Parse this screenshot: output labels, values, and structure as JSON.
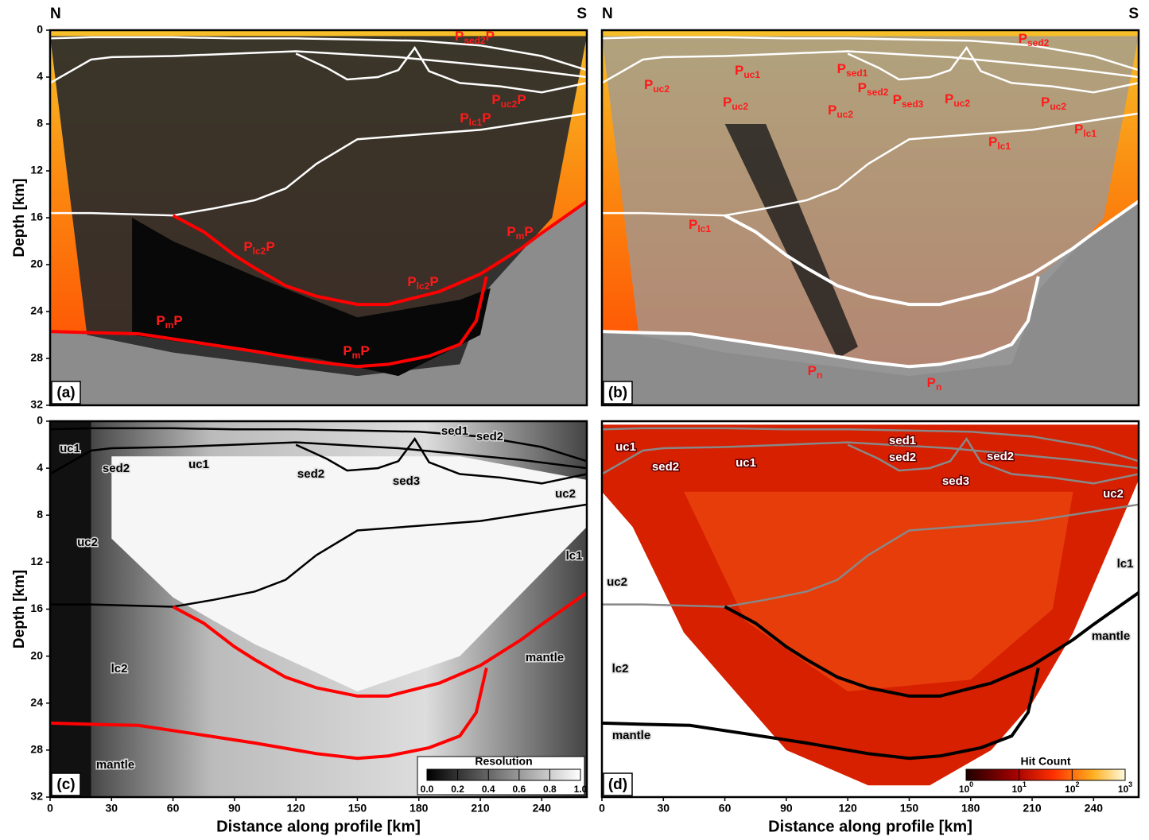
{
  "chart_data": [
    {
      "type": "section",
      "panel": "(a)",
      "left": "N",
      "right": "S",
      "ylabel": "Depth [km]",
      "xlim": [
        0,
        262
      ],
      "ylim": [
        0,
        32
      ],
      "yticks": [
        0,
        4,
        8,
        12,
        16,
        20,
        24,
        28,
        32
      ],
      "line_colors": [
        "#ffffff",
        "#ffffff",
        "#ffffff",
        "#ffffff",
        "#ff0000",
        "#ff0000"
      ],
      "series": [
        {
          "x": [
            0,
            20,
            40,
            60,
            90,
            120,
            150,
            180,
            210,
            240,
            262
          ],
          "values": [
            0.7,
            0.6,
            0.6,
            0.6,
            0.7,
            0.7,
            0.8,
            0.9,
            1.3,
            2.2,
            3.4
          ]
        },
        {
          "x": [
            0,
            20,
            30,
            60,
            90,
            120,
            140,
            170,
            200,
            230,
            262
          ],
          "values": [
            4.5,
            2.5,
            2.3,
            2.2,
            2.0,
            1.8,
            2.0,
            2.3,
            2.8,
            3.3,
            4.0
          ]
        },
        {
          "x": [
            120,
            135,
            145,
            160,
            170,
            178,
            185,
            200,
            220,
            240,
            262
          ],
          "values": [
            2.0,
            3.2,
            4.2,
            4.0,
            3.4,
            1.5,
            3.5,
            4.5,
            4.8,
            5.3,
            4.5
          ]
        },
        {
          "x": [
            0,
            20,
            60,
            80,
            100,
            115,
            130,
            150,
            180,
            210,
            262
          ],
          "values": [
            15.6,
            15.6,
            15.8,
            15.2,
            14.5,
            13.5,
            11.4,
            9.3,
            8.9,
            8.5,
            7.1
          ]
        },
        {
          "x": [
            60,
            75,
            90,
            100,
            115,
            130,
            150,
            165,
            190,
            210,
            230,
            240,
            262
          ],
          "values": [
            15.8,
            17.2,
            19.2,
            20.3,
            21.8,
            22.7,
            23.4,
            23.4,
            22.3,
            20.8,
            18.6,
            17.3,
            14.6
          ]
        },
        {
          "x": [
            0,
            20,
            43,
            70,
            100,
            130,
            150,
            165,
            185,
            200,
            208,
            213
          ],
          "values": [
            25.7,
            25.8,
            25.9,
            26.6,
            27.4,
            28.3,
            28.7,
            28.5,
            27.8,
            26.8,
            24.8,
            21.0
          ]
        }
      ],
      "phases": [
        [
          "P",
          "sed2",
          "P"
        ],
        [
          "P",
          "uc2",
          "P"
        ],
        [
          "P",
          "lc1",
          "P"
        ],
        [
          "P",
          "lc2",
          "P"
        ],
        [
          "P",
          "lc2",
          "P"
        ],
        [
          "P",
          "m",
          "P"
        ],
        [
          "P",
          "m",
          "P"
        ],
        [
          "P",
          "m",
          "P"
        ]
      ]
    },
    {
      "type": "section",
      "panel": "(b)",
      "left": "N",
      "right": "S",
      "xlim": [
        0,
        262
      ],
      "ylim": [
        0,
        32
      ],
      "line_colors": [
        "#ffffff",
        "#ffffff",
        "#ffffff",
        "#ffffff",
        "#ffffff",
        "#ffffff"
      ],
      "phases": [
        [
          "P",
          "sed2"
        ],
        [
          "P",
          "uc1"
        ],
        [
          "P",
          "sed1"
        ],
        [
          "P",
          "sed2"
        ],
        [
          "P",
          "sed3"
        ],
        [
          "P",
          "uc2"
        ],
        [
          "P",
          "uc2"
        ],
        [
          "P",
          "uc2"
        ],
        [
          "P",
          "uc2"
        ],
        [
          "P",
          "uc2"
        ],
        [
          "P",
          "lc1"
        ],
        [
          "P",
          "lc1"
        ],
        [
          "P",
          "lc1"
        ],
        [
          "P",
          "n"
        ],
        [
          "P",
          "n"
        ]
      ]
    },
    {
      "type": "section",
      "panel": "(c)",
      "ylabel": "Depth [km]",
      "xlabel": "Distance along profile [km]",
      "xlim": [
        0,
        262
      ],
      "ylim": [
        0,
        32
      ],
      "yticks": [
        0,
        4,
        8,
        12,
        16,
        20,
        24,
        28,
        32
      ],
      "xticks": [
        0,
        30,
        60,
        90,
        120,
        150,
        180,
        210,
        240
      ],
      "line_colors": [
        "#000000",
        "#000000",
        "#000000",
        "#000000",
        "#ff0000",
        "#ff0000"
      ],
      "labels": [
        "uc1",
        "sed2",
        "uc1",
        "sed1",
        "sed2",
        "sed2",
        "sed3",
        "uc2",
        "uc2",
        "lc1",
        "lc2",
        "mantle",
        "mantle"
      ],
      "colorbar": {
        "title": "Resolution",
        "lim": [
          0,
          1
        ],
        "ticks": [
          {
            "value": 0,
            "label": "0.0"
          },
          {
            "value": 0.2,
            "label": "0.2"
          },
          {
            "value": 0.4,
            "label": "0.4"
          },
          {
            "value": 0.6,
            "label": "0.6"
          },
          {
            "value": 0.8,
            "label": "0.8"
          },
          {
            "value": 1,
            "label": "1.0"
          }
        ]
      }
    },
    {
      "type": "section",
      "panel": "(d)",
      "xlabel": "Distance along profile [km]",
      "xlim": [
        0,
        262
      ],
      "ylim": [
        0,
        32
      ],
      "xticks": [
        0,
        30,
        60,
        90,
        120,
        150,
        180,
        210,
        240
      ],
      "line_colors": [
        "#888888",
        "#888888",
        "#888888",
        "#888888",
        "#000000",
        "#000000"
      ],
      "labels": [
        "uc1",
        "sed2",
        "uc1",
        "sed1",
        "sed2",
        "sed2",
        "sed3",
        "uc2",
        "uc2",
        "lc1",
        "lc2",
        "mantle",
        "mantle"
      ],
      "colorbar": {
        "title": "Hit Count",
        "log": true,
        "lim": [
          1,
          1000
        ],
        "ticks": [
          {
            "value": 1,
            "label": "10",
            "exp": "0"
          },
          {
            "value": 10,
            "label": "10",
            "exp": "1"
          },
          {
            "value": 100,
            "label": "10",
            "exp": "2"
          },
          {
            "value": 1000,
            "label": "10",
            "exp": "3"
          }
        ]
      }
    }
  ]
}
